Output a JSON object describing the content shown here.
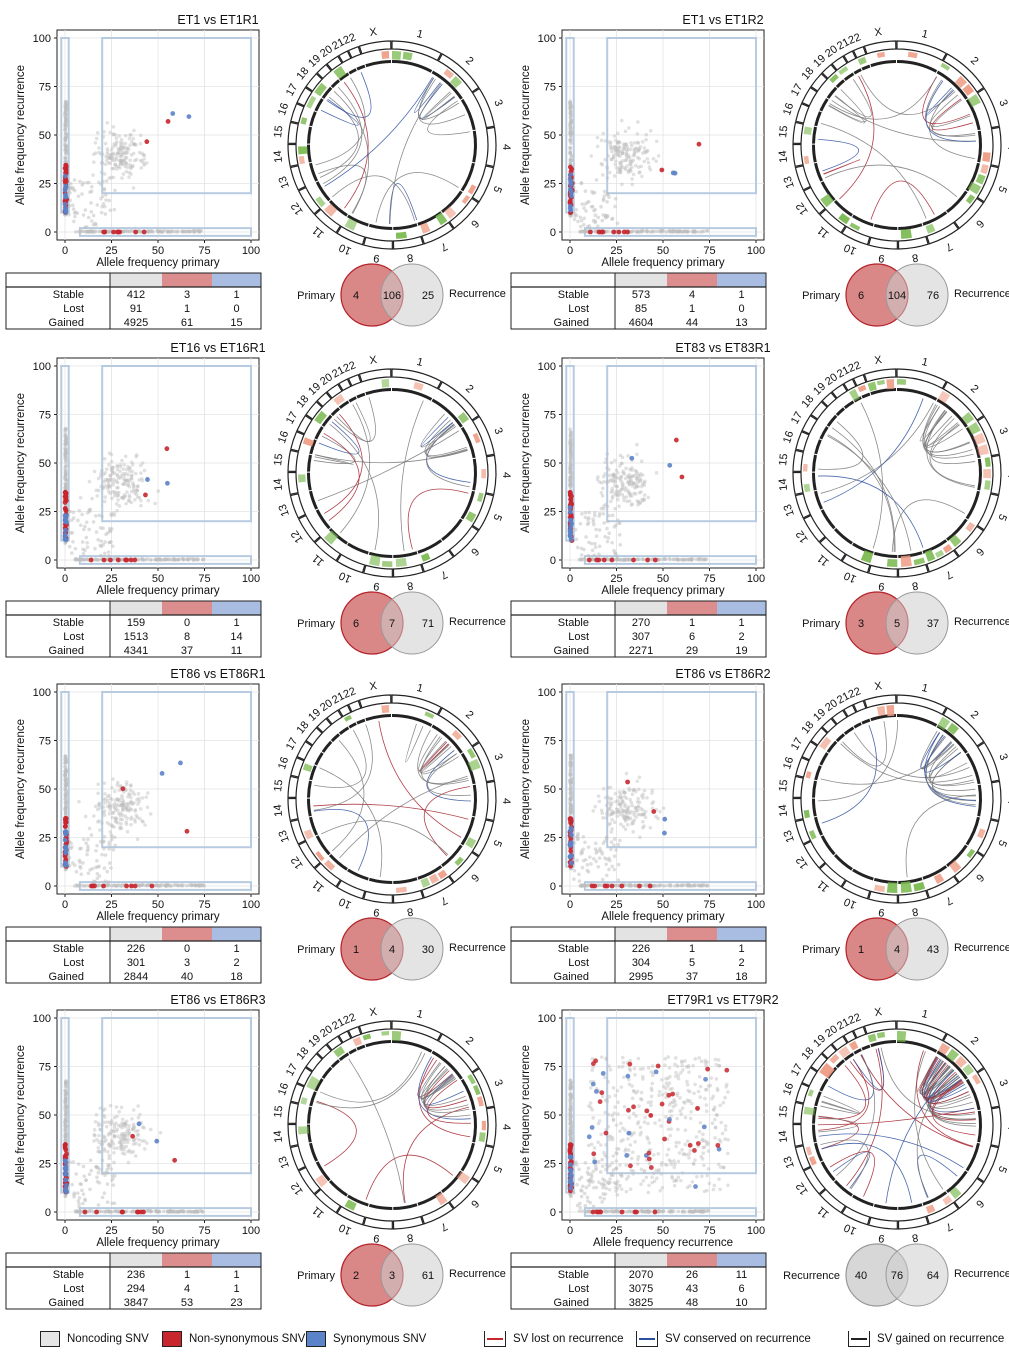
{
  "axis_labels": {
    "x_primary": "Allele frequency primary",
    "x_recurrence": "Allele frequency recurrence",
    "y": "Allele frequency recurrence"
  },
  "ticks": [
    "0",
    "25",
    "50",
    "75",
    "100"
  ],
  "chromosomes": [
    "1",
    "2",
    "3",
    "4",
    "5",
    "6",
    "7",
    "8",
    "9",
    "10",
    "11",
    "12",
    "13",
    "14",
    "15",
    "16",
    "17",
    "18",
    "19",
    "20",
    "21",
    "22",
    "X"
  ],
  "table_row_labels": [
    "Stable",
    "Lost",
    "Gained"
  ],
  "colors": {
    "noncoding": "#e6e6e6",
    "nonsyn": "#c8262e",
    "syn": "#5b83c7",
    "table_noncoding": "#e3e3e3",
    "table_nonsyn": "#dc8e8e",
    "table_syn": "#a9bde3",
    "box": "#b7cbe0",
    "gain": "#79b94e",
    "loss": "#ee9a82",
    "venn_red": "#d47272",
    "venn_grey": "#cdcdcd"
  },
  "legend": [
    {
      "label": "Noncoding SNV",
      "kind": "swatch",
      "color": "#e6e6e6"
    },
    {
      "label": "Non-synonymous SNV",
      "kind": "swatch",
      "color": "#c8262e"
    },
    {
      "label": "Synonymous SNV",
      "kind": "swatch",
      "color": "#5b83c7"
    },
    {
      "label": "SV lost on recurrence",
      "kind": "line",
      "color": "#c8262e"
    },
    {
      "label": "SV conserved on recurrence",
      "kind": "line",
      "color": "#2c4fa0"
    },
    {
      "label": "SV gained on recurrence",
      "kind": "line",
      "color": "#222222"
    }
  ],
  "chart_data": [
    {
      "type": "scatter",
      "title": "ET1 vs ET1R1",
      "xlabel": "Allele frequency primary",
      "ylabel": "Allele frequency recurrence",
      "xlim": [
        0,
        100
      ],
      "ylim": [
        0,
        100
      ],
      "table": [
        [
          "412",
          "3",
          "1"
        ],
        [
          "91",
          "1",
          "0"
        ],
        [
          "4925",
          "61",
          "15"
        ]
      ],
      "venn": {
        "left_label": "Primary",
        "left": "4",
        "shared": "106",
        "right": "25",
        "right_label": "Recurrence"
      }
    },
    {
      "type": "scatter",
      "title": "ET1 vs ET1R2",
      "xlabel": "Allele frequency primary",
      "ylabel": "Allele frequency recurrence",
      "xlim": [
        0,
        100
      ],
      "ylim": [
        0,
        100
      ],
      "table": [
        [
          "573",
          "4",
          "1"
        ],
        [
          "85",
          "1",
          "0"
        ],
        [
          "4604",
          "44",
          "13"
        ]
      ],
      "venn": {
        "left_label": "Primary",
        "left": "6",
        "shared": "104",
        "right": "76",
        "right_label": "Recurrence"
      }
    },
    {
      "type": "scatter",
      "title": "ET16 vs ET16R1",
      "xlabel": "Allele frequency primary",
      "ylabel": "Allele frequency recurrence",
      "xlim": [
        0,
        100
      ],
      "ylim": [
        0,
        100
      ],
      "table": [
        [
          "159",
          "0",
          "1"
        ],
        [
          "1513",
          "8",
          "14"
        ],
        [
          "4341",
          "37",
          "11"
        ]
      ],
      "venn": {
        "left_label": "Primary",
        "left": "6",
        "shared": "7",
        "right": "71",
        "right_label": "Recurrence"
      }
    },
    {
      "type": "scatter",
      "title": "ET83 vs ET83R1",
      "xlabel": "Allele frequency primary",
      "ylabel": "Allele frequency recurrence",
      "xlim": [
        0,
        100
      ],
      "ylim": [
        0,
        100
      ],
      "table": [
        [
          "270",
          "1",
          "1"
        ],
        [
          "307",
          "6",
          "2"
        ],
        [
          "2271",
          "29",
          "19"
        ]
      ],
      "venn": {
        "left_label": "Primary",
        "left": "3",
        "shared": "5",
        "right": "37",
        "right_label": "Recurrence"
      }
    },
    {
      "type": "scatter",
      "title": "ET86 vs ET86R1",
      "xlabel": "Allele frequency primary",
      "ylabel": "Allele frequency recurrence",
      "xlim": [
        0,
        100
      ],
      "ylim": [
        0,
        100
      ],
      "table": [
        [
          "226",
          "0",
          "1"
        ],
        [
          "301",
          "3",
          "2"
        ],
        [
          "2844",
          "40",
          "18"
        ]
      ],
      "venn": {
        "left_label": "Primary",
        "left": "1",
        "shared": "4",
        "right": "30",
        "right_label": "Recurrence"
      }
    },
    {
      "type": "scatter",
      "title": "ET86 vs ET86R2",
      "xlabel": "Allele frequency primary",
      "ylabel": "Allele frequency recurrence",
      "xlim": [
        0,
        100
      ],
      "ylim": [
        0,
        100
      ],
      "table": [
        [
          "226",
          "1",
          "1"
        ],
        [
          "304",
          "5",
          "2"
        ],
        [
          "2995",
          "37",
          "18"
        ]
      ],
      "venn": {
        "left_label": "Primary",
        "left": "1",
        "shared": "4",
        "right": "43",
        "right_label": "Recurrence"
      }
    },
    {
      "type": "scatter",
      "title": "ET86 vs ET86R3",
      "xlabel": "Allele frequency primary",
      "ylabel": "Allele frequency recurrence",
      "xlim": [
        0,
        100
      ],
      "ylim": [
        0,
        100
      ],
      "table": [
        [
          "236",
          "1",
          "1"
        ],
        [
          "294",
          "4",
          "1"
        ],
        [
          "3847",
          "53",
          "23"
        ]
      ],
      "venn": {
        "left_label": "Primary",
        "left": "2",
        "shared": "3",
        "right": "61",
        "right_label": "Recurrence"
      }
    },
    {
      "type": "scatter",
      "title": "ET79R1 vs ET79R2",
      "xlabel": "Allele frequency recurrence",
      "ylabel": "Allele frequency recurrence",
      "xlim": [
        0,
        100
      ],
      "ylim": [
        0,
        100
      ],
      "table": [
        [
          "2070",
          "26",
          "11"
        ],
        [
          "3075",
          "43",
          "6"
        ],
        [
          "3825",
          "48",
          "10"
        ]
      ],
      "venn": {
        "left_label": "Recurrence",
        "left": "40",
        "shared": "76",
        "right": "64",
        "right_label": "Recurrence"
      }
    }
  ]
}
